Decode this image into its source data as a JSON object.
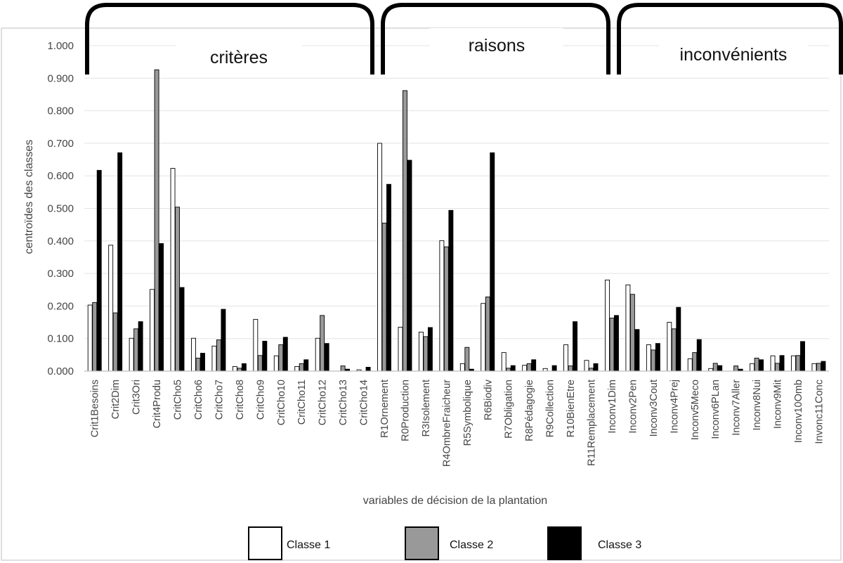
{
  "chart_data": {
    "type": "bar",
    "ylabel": "centroïdes des classes",
    "xlabel": "variables de décision de la plantation",
    "ylim": [
      0,
      1
    ],
    "yticks": [
      "0.000",
      "0.100",
      "0.200",
      "0.300",
      "0.400",
      "0.500",
      "0.600",
      "0.700",
      "0.800",
      "0.900",
      "1.000"
    ],
    "grid": "horizontal",
    "legend_position": "bottom",
    "groups": [
      {
        "label": "critères",
        "first": 0,
        "last": 13
      },
      {
        "label": "raisons",
        "first": 14,
        "last": 24
      },
      {
        "label": "inconvénients",
        "first": 25,
        "last": 35
      }
    ],
    "categories": [
      "Crit1Besoins",
      "Crit2Dim",
      "Crit3Ori",
      "Crit4Produ",
      "CritCho5",
      "CritCho6",
      "CritCho7",
      "CritCho8",
      "CritCho9",
      "CritCho10",
      "CritCho11",
      "CritCho12",
      "CritCho13",
      "CritCho14",
      "R1Ornement",
      "R0Production",
      "R3Isolement",
      "R4OmbreFraicheur",
      "R5Symbolique",
      "R6Biodiv",
      "R7Obligation",
      "R8Pédagogie",
      "R9Collection",
      "R10BienEtre",
      "R11Remplacement",
      "Inconv1Dim",
      "Inconv2Pen",
      "Inconv3Cout",
      "Inconv4Prej",
      "Inconv5Meco",
      "Inconv6PLan",
      "Inconv7Aller",
      "Inconv8Nui",
      "Inconv9Mit",
      "Inconv10Omb",
      "Invonc11Conc"
    ],
    "series": [
      {
        "name": "Classe 1",
        "color": "#ffffff",
        "values": [
          0.203,
          0.387,
          0.101,
          0.251,
          0.623,
          0.101,
          0.077,
          0.014,
          0.159,
          0.047,
          0.014,
          0.101,
          0.0,
          0.004,
          0.7,
          0.135,
          0.12,
          0.401,
          0.023,
          0.208,
          0.057,
          0.018,
          0.008,
          0.081,
          0.033,
          0.28,
          0.265,
          0.081,
          0.15,
          0.038,
          0.008,
          0.0,
          0.023,
          0.047,
          0.047,
          0.023
        ]
      },
      {
        "name": "Classe 2",
        "color": "#999999",
        "values": [
          0.211,
          0.179,
          0.13,
          0.926,
          0.504,
          0.04,
          0.096,
          0.009,
          0.048,
          0.081,
          0.023,
          0.171,
          0.016,
          0.0,
          0.455,
          0.862,
          0.106,
          0.382,
          0.073,
          0.228,
          0.009,
          0.023,
          0.0,
          0.016,
          0.009,
          0.163,
          0.236,
          0.065,
          0.13,
          0.057,
          0.024,
          0.016,
          0.04,
          0.024,
          0.048,
          0.024
        ]
      },
      {
        "name": "Classe 3",
        "color": "#000000",
        "values": [
          0.617,
          0.671,
          0.152,
          0.392,
          0.257,
          0.055,
          0.19,
          0.023,
          0.092,
          0.104,
          0.035,
          0.085,
          0.006,
          0.012,
          0.574,
          0.648,
          0.134,
          0.494,
          0.006,
          0.671,
          0.017,
          0.035,
          0.017,
          0.152,
          0.023,
          0.171,
          0.128,
          0.085,
          0.196,
          0.097,
          0.017,
          0.006,
          0.035,
          0.048,
          0.091,
          0.03
        ]
      }
    ]
  }
}
